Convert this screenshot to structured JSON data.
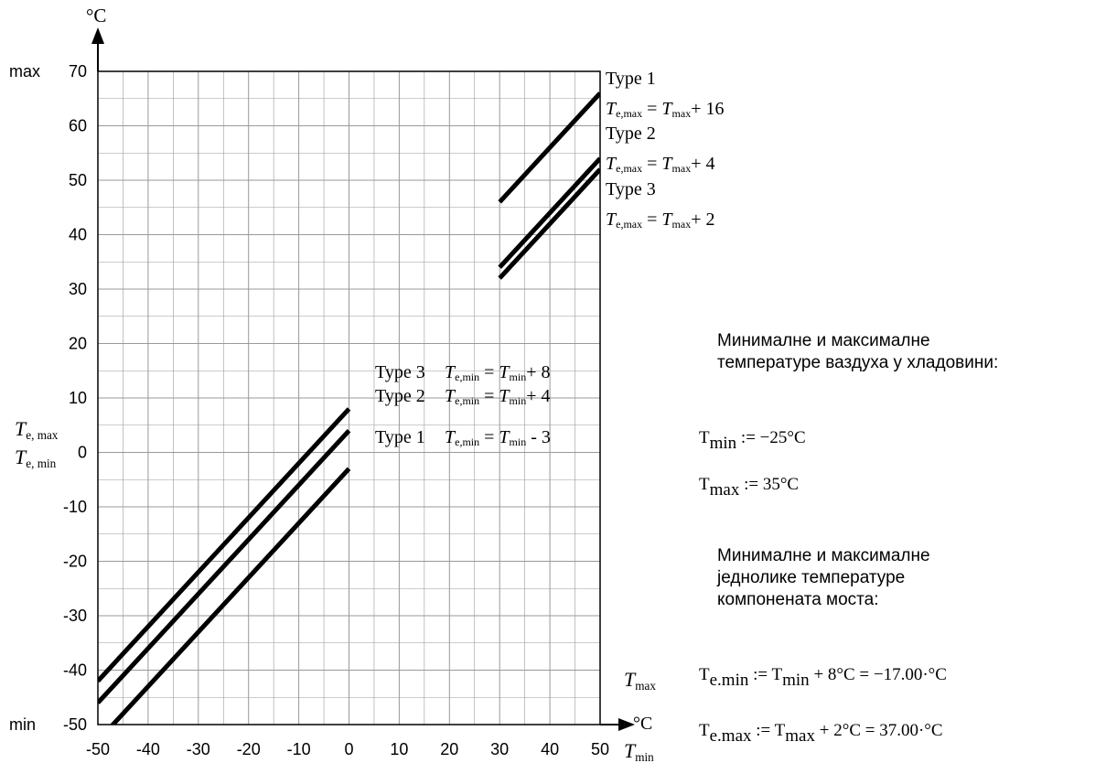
{
  "chart_data": {
    "type": "line",
    "x_unit": "°C",
    "y_unit": "°C",
    "x_ticks": [
      -50,
      -40,
      -30,
      -20,
      -10,
      0,
      10,
      20,
      30,
      40,
      50
    ],
    "y_ticks": [
      70,
      60,
      50,
      40,
      30,
      20,
      10,
      0,
      -10,
      -20,
      -30,
      -40,
      -50
    ],
    "xlim": [
      -50,
      50
    ],
    "ylim": [
      -50,
      70
    ],
    "grid": true,
    "y_max_label": "max",
    "y_min_label": "min",
    "y_axis_label_top": "Te, max",
    "y_axis_label_bottom": "Te, min",
    "x_axis_label_top": "Tmax",
    "x_axis_label_bottom": "Tmin",
    "series": [
      {
        "name": "Type 1",
        "group": "max",
        "x": [
          30,
          50
        ],
        "y": [
          46,
          66
        ]
      },
      {
        "name": "Type 2",
        "group": "max",
        "x": [
          30,
          50
        ],
        "y": [
          34,
          54
        ]
      },
      {
        "name": "Type 3",
        "group": "max",
        "x": [
          30,
          50
        ],
        "y": [
          32,
          52
        ]
      },
      {
        "name": "Type 3",
        "group": "min",
        "x": [
          -50,
          0
        ],
        "y": [
          -42,
          8
        ]
      },
      {
        "name": "Type 2",
        "group": "min",
        "x": [
          -50,
          0
        ],
        "y": [
          -46,
          4
        ]
      },
      {
        "name": "Type 1",
        "group": "min",
        "x": [
          -50,
          0
        ],
        "y": [
          -53,
          -3
        ]
      }
    ],
    "max_labels": [
      {
        "type": "Type 1",
        "formula": "= Tmax+ 16"
      },
      {
        "type": "Type 2",
        "formula": "= Tmax+ 4"
      },
      {
        "type": "Type 3",
        "formula": "= Tmax+ 2"
      }
    ],
    "min_labels": [
      {
        "type": "Type 3",
        "formula": "= Tmin+ 8"
      },
      {
        "type": "Type 2",
        "formula": "= Tmin+ 4"
      },
      {
        "type": "Type 1",
        "formula": "= Tmin - 3"
      }
    ]
  },
  "side_text": {
    "air_heading_1": "Минималне и максималне",
    "air_heading_2": "температуре ваздуха у хладовини:",
    "tmin_eq": ":= −25°C",
    "tmax_eq": ":= 35°C",
    "comp_heading_1": "Минималне и максималне",
    "comp_heading_2": "једнолике температуре",
    "comp_heading_3": "компонената моста:",
    "temin_eq": ":= T",
    "temin_eq_tail": "+ 8°C = −17.00·°C",
    "temax_eq": ":= T",
    "temax_eq_tail": "+ 2°C = 37.00·°C",
    "sym_T": "T",
    "sub_min": "min",
    "sub_max": "max",
    "sub_emin": "e.min",
    "sub_emax": "e.max"
  }
}
